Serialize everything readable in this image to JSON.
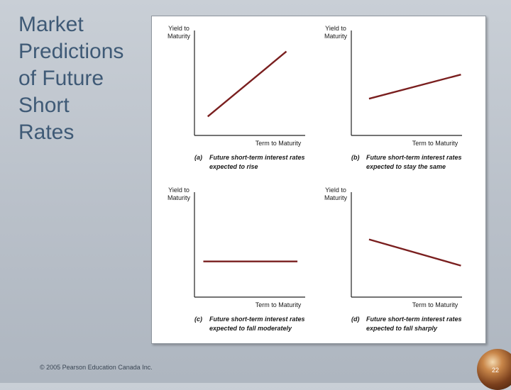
{
  "slide": {
    "title_lines": [
      "Market",
      "Predictions",
      "of Future",
      "Short",
      "Rates"
    ],
    "copyright": "© 2005 Pearson Education Canada Inc.",
    "page_number": "22"
  },
  "colors": {
    "line": "#7a1f1f",
    "axis": "#222222",
    "title": "#3f5a76"
  },
  "chart_data": [
    {
      "type": "line",
      "panel": "a",
      "ylabel": "Yield to Maturity",
      "xlabel": "Term to Maturity",
      "xlim": [
        0,
        1
      ],
      "ylim": [
        0,
        1
      ],
      "series": [
        {
          "x": [
            0.12,
            0.83
          ],
          "y": [
            0.18,
            0.8
          ]
        }
      ],
      "caption_letter": "(a)",
      "caption_line1": "Future short-term interest rates",
      "caption_line2": "expected to rise"
    },
    {
      "type": "line",
      "panel": "b",
      "ylabel": "Yield to Maturity",
      "xlabel": "Term to Maturity",
      "xlim": [
        0,
        1
      ],
      "ylim": [
        0,
        1
      ],
      "series": [
        {
          "x": [
            0.16,
            0.99
          ],
          "y": [
            0.35,
            0.58
          ]
        }
      ],
      "caption_letter": "(b)",
      "caption_line1": "Future short-term interest rates",
      "caption_line2": "expected to stay the same"
    },
    {
      "type": "line",
      "panel": "c",
      "ylabel": "Yield to Maturity",
      "xlabel": "Term to Maturity",
      "xlim": [
        0,
        1
      ],
      "ylim": [
        0,
        1
      ],
      "series": [
        {
          "x": [
            0.08,
            0.93
          ],
          "y": [
            0.34,
            0.34
          ]
        }
      ],
      "caption_letter": "(c)",
      "caption_line1": "Future short-term interest rates",
      "caption_line2": "expected to fall moderately"
    },
    {
      "type": "line",
      "panel": "d",
      "ylabel": "Yield to Maturity",
      "xlabel": "Term to Maturity",
      "xlim": [
        0,
        1
      ],
      "ylim": [
        0,
        1
      ],
      "series": [
        {
          "x": [
            0.16,
            0.99
          ],
          "y": [
            0.55,
            0.3
          ]
        }
      ],
      "caption_letter": "(d)",
      "caption_line1": "Future short-term interest rates",
      "caption_line2": "expected to fall sharply"
    }
  ]
}
